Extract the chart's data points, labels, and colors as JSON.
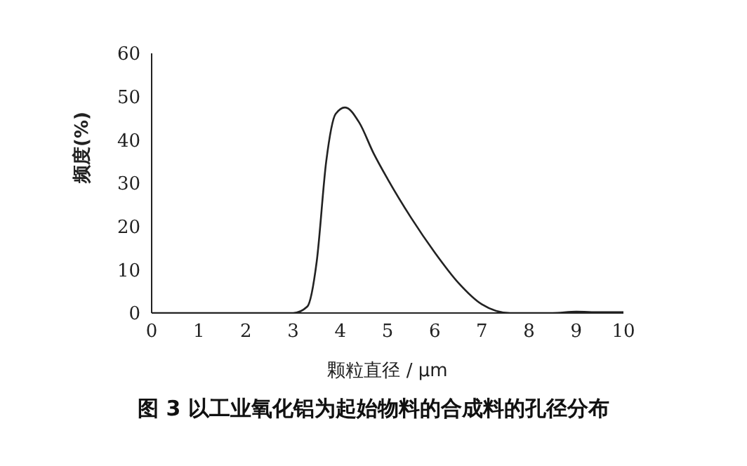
{
  "chart_data": {
    "type": "line",
    "title": "图 3 以工业氧化铝为起始物料的合成料的孔径分布",
    "xlabel": "颗粒直径 / μm",
    "ylabel": "频度(%)",
    "x": [
      0,
      1,
      1.5,
      2,
      2.5,
      3,
      3.3,
      3.5,
      3.7,
      3.9,
      4.1,
      4.4,
      4.7,
      5,
      5.5,
      6,
      6.5,
      7,
      7.3,
      7.6,
      8,
      8.5,
      9,
      9.5,
      10
    ],
    "series": [
      {
        "color": "#222222",
        "values": [
          0,
          0,
          0,
          0,
          0,
          0,
          1.5,
          12,
          35,
          46,
          47.5,
          44,
          37,
          31,
          22,
          14,
          7,
          2,
          0.5,
          0,
          0,
          0,
          0.3,
          0.2,
          0.2
        ]
      }
    ],
    "xlim": [
      0,
      10
    ],
    "xticks": [
      0,
      1,
      2,
      3,
      4,
      5,
      6,
      7,
      8,
      9,
      10
    ],
    "ylim": [
      0,
      60
    ],
    "yticks": [
      0,
      10,
      20,
      30,
      40,
      50,
      60
    ],
    "grid": false,
    "marker": "none",
    "line_style": "solid"
  }
}
